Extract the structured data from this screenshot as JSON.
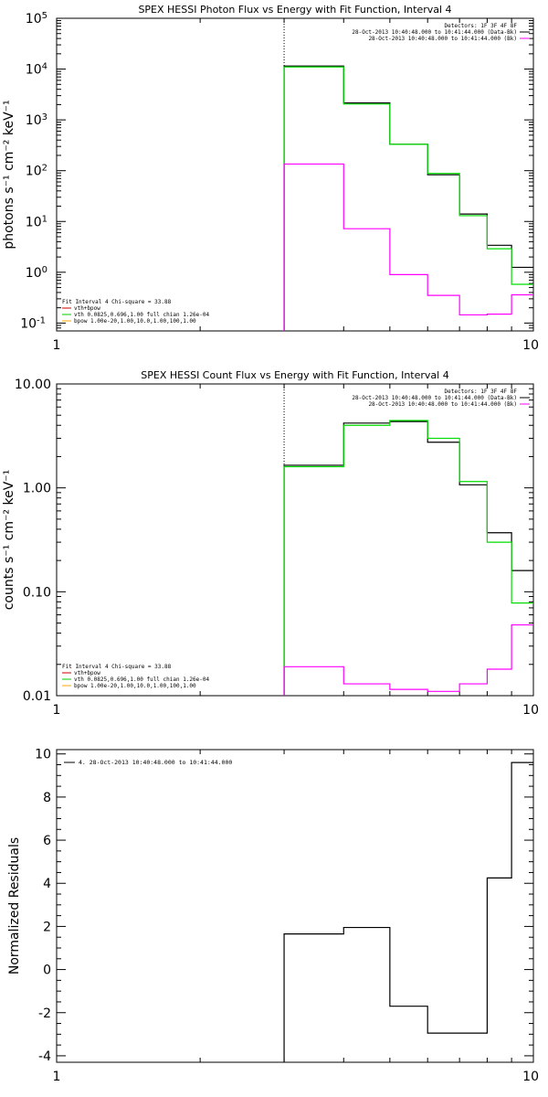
{
  "colors": {
    "data": "#000000",
    "bk": "#ff00ff",
    "fit": "#00dd00",
    "comp_vth": "#00cc00",
    "comp_bpow": "#ffaa00",
    "comp_sum": "#cc0000",
    "axis": "#000000"
  },
  "chart_data": [
    {
      "type": "step",
      "title": "SPEX HESSI Photon Flux vs Energy with Fit Function, Interval 4",
      "ylabel": "photons s⁻¹ cm⁻² keV⁻¹",
      "xscale": "log",
      "yscale": "log",
      "xlim": [
        1,
        10
      ],
      "ylim": [
        0.07,
        100000
      ],
      "xticks": [
        {
          "v": 1,
          "label": "1"
        },
        {
          "v": 10,
          "label": "10"
        }
      ],
      "yticks": [
        {
          "v": 0.1,
          "b": "10",
          "e": "-1"
        },
        {
          "v": 1,
          "b": "10",
          "e": "0"
        },
        {
          "v": 10,
          "b": "10",
          "e": "1"
        },
        {
          "v": 100,
          "b": "10",
          "e": "2"
        },
        {
          "v": 1000,
          "b": "10",
          "e": "3"
        },
        {
          "v": 10000,
          "b": "10",
          "e": "4"
        },
        {
          "v": 100000,
          "b": "10",
          "e": "5"
        }
      ],
      "energy_edges": [
        3.0,
        4.0,
        5.0,
        6.0,
        7.0,
        8.0,
        9.0,
        10.0
      ],
      "series": [
        {
          "key": "data",
          "values": [
            11500,
            2150,
            330,
            83,
            14,
            3.4,
            1.25
          ]
        },
        {
          "key": "fit",
          "values": [
            11000,
            2050,
            330,
            88,
            13,
            2.9,
            0.58
          ]
        },
        {
          "key": "bk",
          "values": [
            135,
            7.2,
            0.9,
            0.35,
            0.145,
            0.15,
            0.36
          ]
        }
      ],
      "dotted_line_x": 3.0,
      "legend_tr": [
        {
          "text": "Detectors: 1F 3F 4F 8F",
          "color": "#000000"
        },
        {
          "text": "28-Oct-2013 10:40:48.000 to 10:41:44.000 (Data-Bk)",
          "color": "#000000"
        },
        {
          "text": "28-Oct-2013 10:40:48.000 to 10:41:44.000 (Bk)",
          "color": "#ff00ff"
        }
      ],
      "legend_bl": [
        {
          "text": "Fit Interval 4   Chi-square = 33.88",
          "color": "#000000"
        },
        {
          "text": "vth+bpow",
          "color": "#cc0000"
        },
        {
          "text": "vth 0.0825,0.696,1.00  full chian 1.26e-04",
          "color": "#00cc00"
        },
        {
          "text": "bpow 1.00e-20,1.00,10.0,1.00,100,1.00",
          "color": "#ffaa00"
        }
      ]
    },
    {
      "type": "step",
      "title": "SPEX HESSI Count Flux vs Energy with Fit Function, Interval 4",
      "ylabel": "counts s⁻¹ cm⁻² keV⁻¹",
      "xscale": "log",
      "yscale": "log",
      "xlim": [
        1,
        10
      ],
      "ylim": [
        0.01,
        10
      ],
      "xticks": [
        {
          "v": 1,
          "label": "1"
        },
        {
          "v": 10,
          "label": "10"
        }
      ],
      "yticks": [
        {
          "v": 0.01,
          "label": "0.01"
        },
        {
          "v": 0.1,
          "label": "0.10"
        },
        {
          "v": 1,
          "label": "1.00"
        },
        {
          "v": 10,
          "label": "10.00"
        }
      ],
      "energy_edges": [
        3.0,
        4.0,
        5.0,
        6.0,
        7.0,
        8.0,
        9.0,
        10.0
      ],
      "series": [
        {
          "key": "data",
          "values": [
            1.65,
            4.2,
            4.35,
            2.75,
            1.07,
            0.37,
            0.16
          ]
        },
        {
          "key": "fit",
          "values": [
            1.6,
            4.0,
            4.45,
            3.0,
            1.15,
            0.3,
            0.078
          ]
        },
        {
          "key": "bk",
          "values": [
            0.019,
            0.013,
            0.0115,
            0.011,
            0.013,
            0.018,
            0.048
          ]
        }
      ],
      "dotted_line_x": 3.0,
      "legend_tr": [
        {
          "text": "Detectors: 1F 3F 4F 8F",
          "color": "#000000"
        },
        {
          "text": "28-Oct-2013 10:40:48.000 to 10:41:44.000 (Data-Bk)",
          "color": "#000000"
        },
        {
          "text": "28-Oct-2013 10:40:48.000 to 10:41:44.000 (Bk)",
          "color": "#ff00ff"
        }
      ],
      "legend_bl": [
        {
          "text": "Fit Interval 4   Chi-square = 33.88",
          "color": "#000000"
        },
        {
          "text": "vth+bpow",
          "color": "#cc0000"
        },
        {
          "text": "vth 0.0825,0.696,1.00  full chian 1.26e-04",
          "color": "#00cc00"
        },
        {
          "text": "bpow 1.00e-20,1.00,10.0,1.00,100,1.00",
          "color": "#ffaa00"
        }
      ]
    },
    {
      "type": "step",
      "title": "",
      "ylabel": "Normalized Residuals",
      "xscale": "log",
      "yscale": "linear",
      "xlim": [
        1,
        10
      ],
      "ylim": [
        -4.3,
        10.2
      ],
      "xticks": [
        {
          "v": 1,
          "label": "1"
        },
        {
          "v": 10,
          "label": "10"
        }
      ],
      "yticks": [
        {
          "v": -4,
          "label": "-4"
        },
        {
          "v": -2,
          "label": "-2"
        },
        {
          "v": 0,
          "label": "0"
        },
        {
          "v": 2,
          "label": "2"
        },
        {
          "v": 4,
          "label": "4"
        },
        {
          "v": 6,
          "label": "6"
        },
        {
          "v": 8,
          "label": "8"
        },
        {
          "v": 10,
          "label": "10"
        }
      ],
      "energy_edges": [
        3.0,
        4.0,
        5.0,
        6.0,
        7.0,
        8.0,
        9.0,
        10.0
      ],
      "series": [
        {
          "key": "data",
          "values": [
            1.65,
            1.95,
            -1.7,
            -2.95,
            -2.95,
            4.25,
            9.6
          ]
        }
      ],
      "legend_tl": [
        {
          "text": "4. 28-Oct-2013 10:40:48.000 to 10:41:44.000",
          "color": "#000000"
        }
      ]
    }
  ]
}
